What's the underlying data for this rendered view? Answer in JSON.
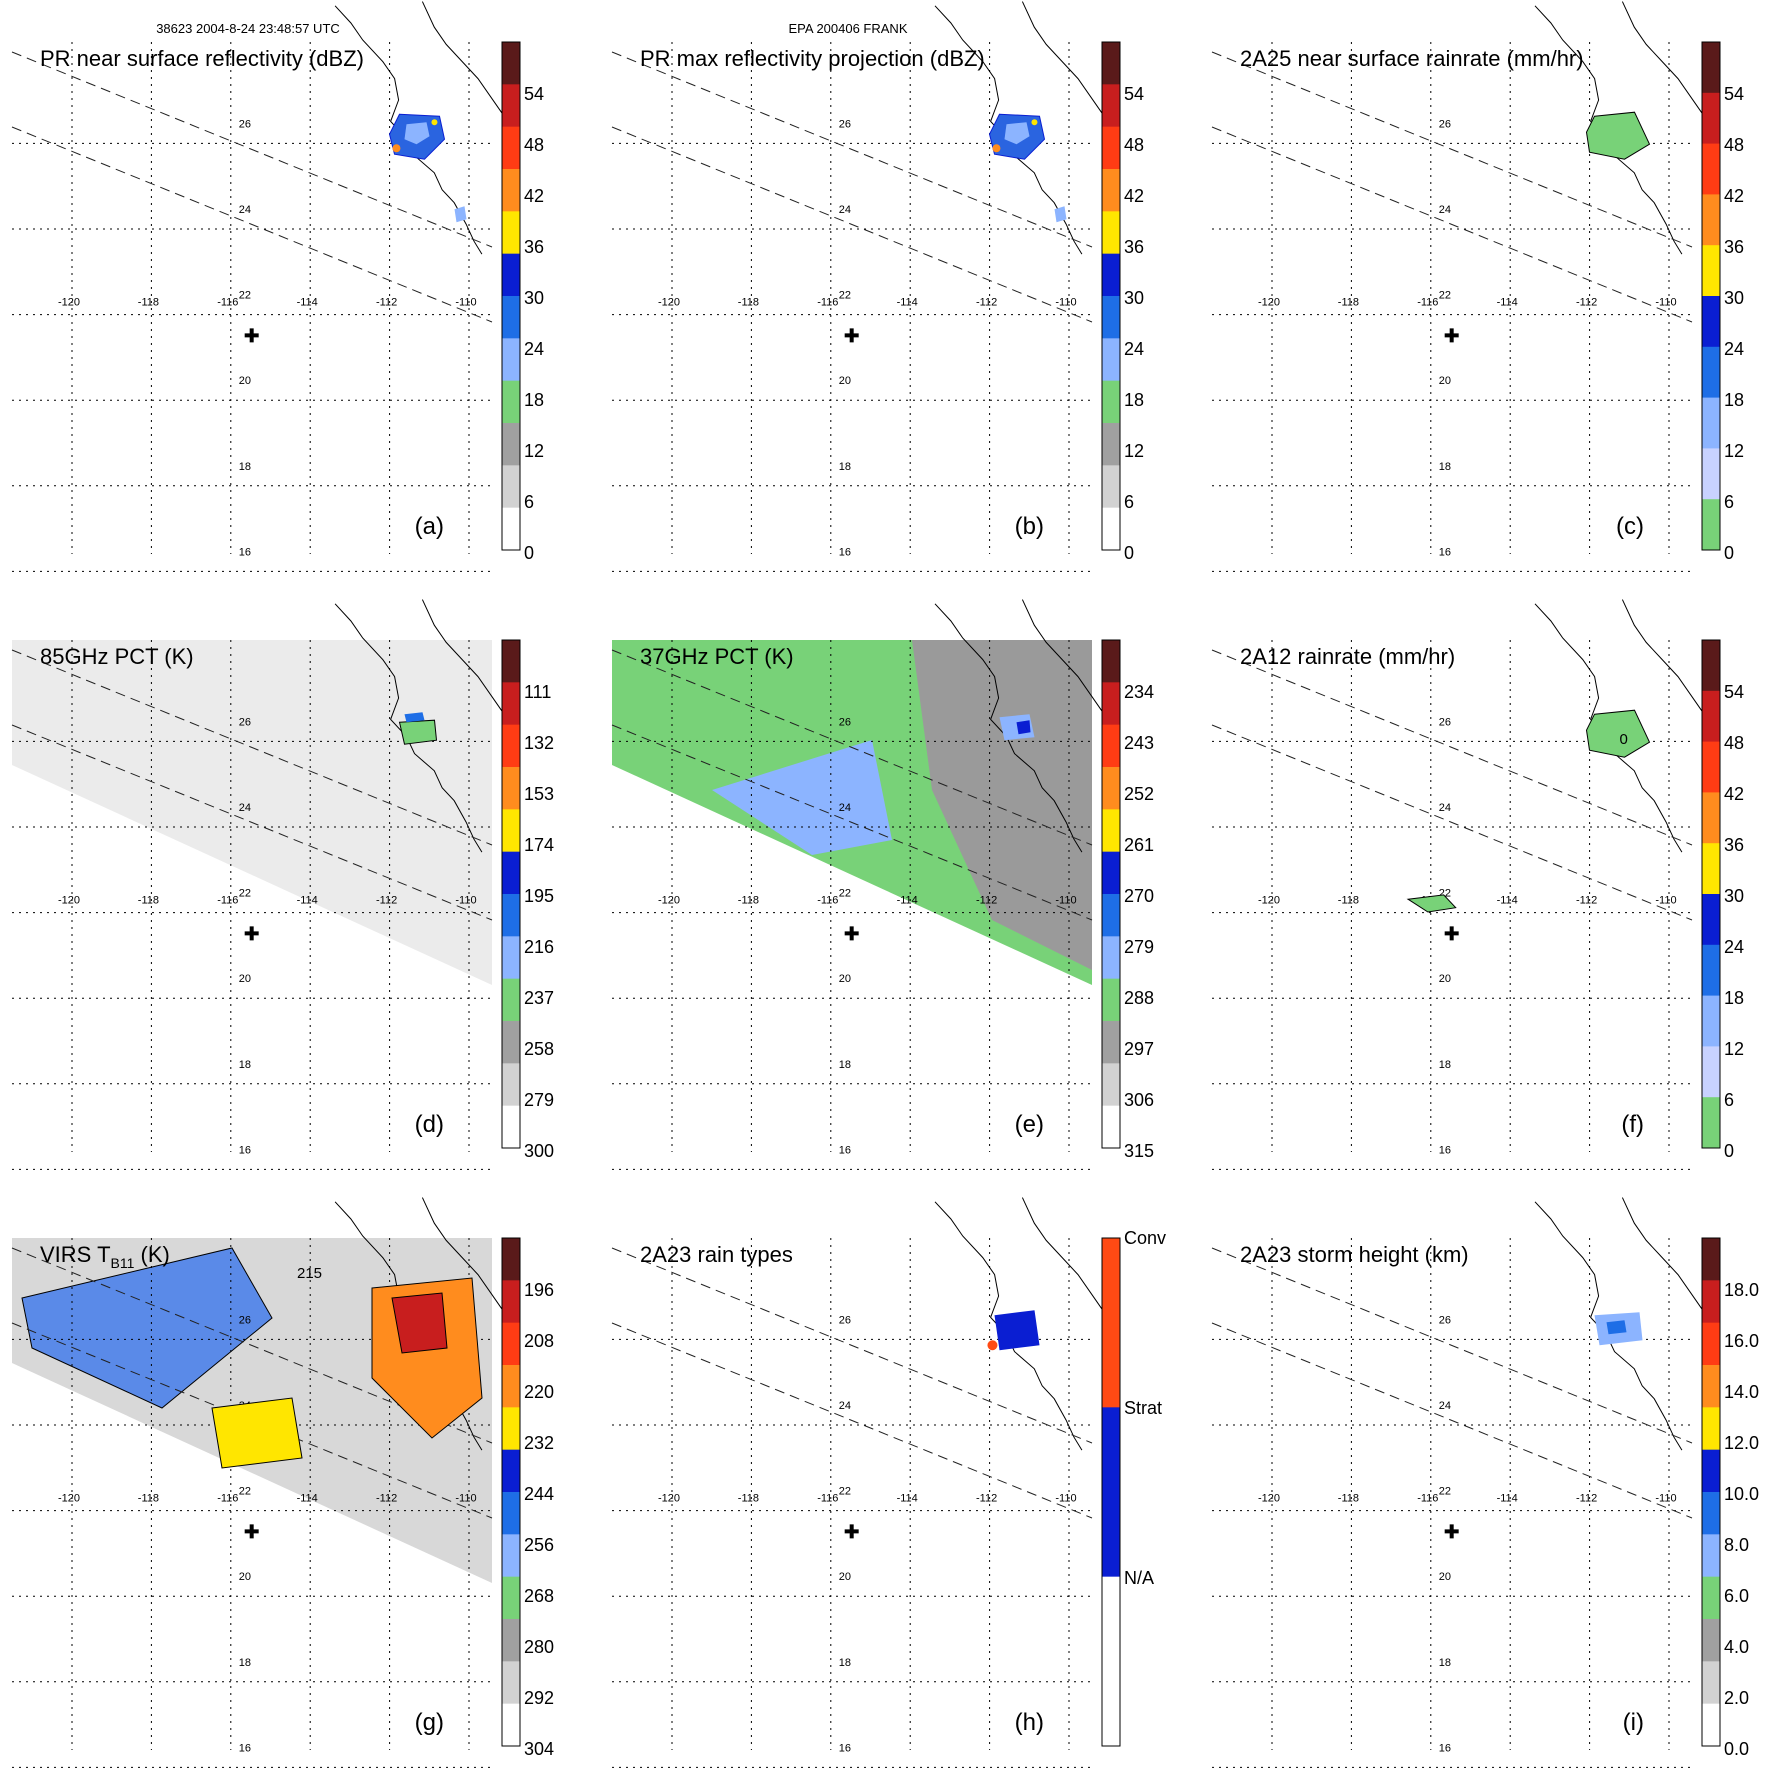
{
  "header": {
    "orbit_time": "38623 2004-8-24 23:48:57 UTC",
    "storm": "EPA 200406 FRANK"
  },
  "map": {
    "lat_labels": [
      "26",
      "24",
      "22",
      "20",
      "18",
      "16"
    ],
    "lon_labels": [
      "-120",
      "-118",
      "-116",
      "-114",
      "-112",
      "-110"
    ],
    "center_marker": "plus-icon"
  },
  "panels": [
    {
      "id": "a",
      "title": "PR near surface reflectivity (dBZ)",
      "letter": "(a)",
      "cbar_labels": [
        "54",
        "48",
        "42",
        "36",
        "30",
        "24",
        "18",
        "12",
        "6",
        "0"
      ],
      "cbar_colors": [
        "#5a1a1a",
        "#c81e1e",
        "#ff3c14",
        "#ff8c1e",
        "#ffe600",
        "#0a1ed2",
        "#1e6ee6",
        "#8cb4ff",
        "#78d278",
        "#a0a0a0",
        "#d2d2d2",
        "#ffffff"
      ],
      "field": "pr_refl"
    },
    {
      "id": "b",
      "title": "PR max reflectivity projection (dBZ)",
      "letter": "(b)",
      "cbar_labels": [
        "54",
        "48",
        "42",
        "36",
        "30",
        "24",
        "18",
        "12",
        "6",
        "0"
      ],
      "cbar_colors": [
        "#5a1a1a",
        "#c81e1e",
        "#ff3c14",
        "#ff8c1e",
        "#ffe600",
        "#0a1ed2",
        "#1e6ee6",
        "#8cb4ff",
        "#78d278",
        "#a0a0a0",
        "#d2d2d2",
        "#ffffff"
      ],
      "field": "pr_max"
    },
    {
      "id": "c",
      "title": "2A25 near surface rainrate (mm/hr)",
      "letter": "(c)",
      "cbar_labels": [
        "54",
        "48",
        "42",
        "36",
        "30",
        "24",
        "18",
        "12",
        "6",
        "0"
      ],
      "cbar_colors": [
        "#5a1a1a",
        "#c81e1e",
        "#ff3c14",
        "#ff8c1e",
        "#ffe600",
        "#0a1ed2",
        "#1e6ee6",
        "#8cb4ff",
        "#c8d2ff",
        "#78d278"
      ],
      "field": "rain25"
    },
    {
      "id": "d",
      "title": "85GHz PCT (K)",
      "letter": "(d)",
      "cbar_labels": [
        "111",
        "132",
        "153",
        "174",
        "195",
        "216",
        "237",
        "258",
        "279",
        "300"
      ],
      "cbar_colors": [
        "#5a1a1a",
        "#c81e1e",
        "#ff3c14",
        "#ff8c1e",
        "#ffe600",
        "#0a1ed2",
        "#1e6ee6",
        "#8cb4ff",
        "#78d278",
        "#a0a0a0",
        "#d2d2d2",
        "#ffffff"
      ],
      "field": "pct85"
    },
    {
      "id": "e",
      "title": "37GHz PCT (K)",
      "letter": "(e)",
      "cbar_labels": [
        "234",
        "243",
        "252",
        "261",
        "270",
        "279",
        "288",
        "297",
        "306",
        "315"
      ],
      "cbar_colors": [
        "#5a1a1a",
        "#c81e1e",
        "#ff3c14",
        "#ff8c1e",
        "#ffe600",
        "#0a1ed2",
        "#1e6ee6",
        "#8cb4ff",
        "#78d278",
        "#a0a0a0",
        "#d2d2d2",
        "#ffffff"
      ],
      "field": "pct37"
    },
    {
      "id": "f",
      "title": "2A12 rainrate (mm/hr)",
      "letter": "(f)",
      "cbar_labels": [
        "54",
        "48",
        "42",
        "36",
        "30",
        "24",
        "18",
        "12",
        "6",
        "0"
      ],
      "cbar_colors": [
        "#5a1a1a",
        "#c81e1e",
        "#ff3c14",
        "#ff8c1e",
        "#ffe600",
        "#0a1ed2",
        "#1e6ee6",
        "#8cb4ff",
        "#c8d2ff",
        "#78d278"
      ],
      "field": "rain12",
      "contour_label": "0"
    },
    {
      "id": "g",
      "title": "VIRS T",
      "title_sub": "B11",
      "title_tail": " (K)",
      "letter": "(g)",
      "cbar_labels": [
        "196",
        "208",
        "220",
        "232",
        "244",
        "256",
        "268",
        "280",
        "292",
        "304"
      ],
      "cbar_colors": [
        "#5a1a1a",
        "#c81e1e",
        "#ff3c14",
        "#ff8c1e",
        "#ffe600",
        "#0a1ed2",
        "#1e6ee6",
        "#8cb4ff",
        "#78d278",
        "#a0a0a0",
        "#d2d2d2",
        "#ffffff"
      ],
      "field": "virs",
      "contour_label": "215"
    },
    {
      "id": "h",
      "title": "2A23 rain types",
      "letter": "(h)",
      "cbar_labels": [
        "Conv",
        "Strat",
        "N/A"
      ],
      "cbar_colors": [
        "#ff4a14",
        "#0a1ed2",
        "#ffffff"
      ],
      "field": "raintype"
    },
    {
      "id": "i",
      "title": "2A23 storm height (km)",
      "letter": "(i)",
      "cbar_labels": [
        "18.0",
        "16.0",
        "14.0",
        "12.0",
        "10.0",
        "8.0",
        "6.0",
        "4.0",
        "2.0",
        "0.0"
      ],
      "cbar_colors": [
        "#5a1a1a",
        "#c81e1e",
        "#ff3c14",
        "#ff8c1e",
        "#ffe600",
        "#0a1ed2",
        "#1e6ee6",
        "#8cb4ff",
        "#78d278",
        "#a0a0a0",
        "#d2d2d2",
        "#ffffff"
      ],
      "field": "height"
    }
  ]
}
